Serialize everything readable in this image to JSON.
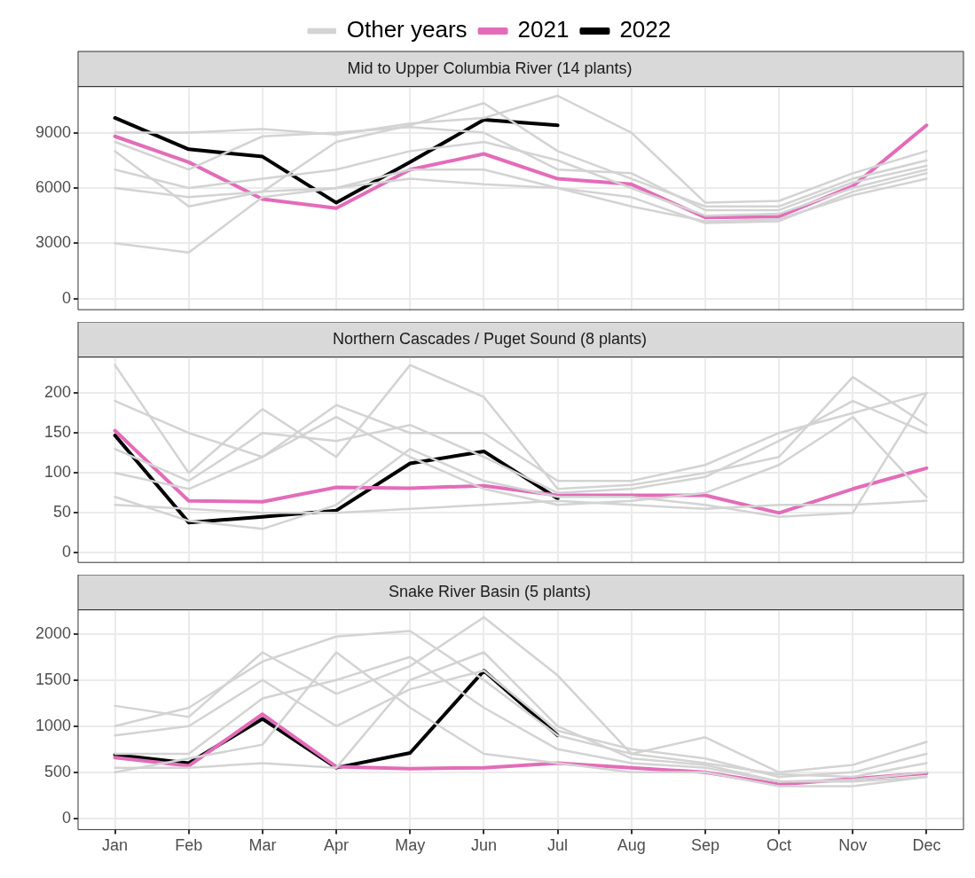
{
  "chart_data": [
    {
      "type": "line",
      "title": "Mid to Upper Columbia River (14 plants)",
      "legend": "top",
      "grid": true,
      "tick_labels": "y",
      "categories": [
        null,
        null,
        null,
        null,
        null,
        null,
        null,
        null,
        null,
        null,
        null,
        null
      ],
      "ylim": [
        -600,
        11500
      ],
      "yticks": [
        0,
        3000,
        6000,
        9000
      ],
      "series": [
        {
          "name": "Other years",
          "color": "#d3d3d3",
          "values": [
            3000,
            2500,
            5500,
            6000,
            6500,
            6200,
            6000,
            5000,
            4200,
            4300,
            5600,
            6500
          ]
        },
        {
          "color": "#d3d3d3",
          "values": [
            9000,
            9000,
            9200,
            8900,
            9500,
            9800,
            11000,
            9000,
            5200,
            5300,
            6800,
            8000
          ]
        },
        {
          "color": "#d3d3d3",
          "values": [
            7000,
            6000,
            6500,
            7000,
            8000,
            8500,
            7500,
            6000,
            4500,
            4600,
            6000,
            7000
          ]
        },
        {
          "color": "#d3d3d3",
          "values": [
            8000,
            5000,
            5800,
            8500,
            9400,
            10600,
            8000,
            6500,
            5000,
            5000,
            6500,
            7500
          ]
        },
        {
          "color": "#d3d3d3",
          "values": [
            6000,
            5500,
            5800,
            6000,
            7000,
            7000,
            6000,
            5500,
            4100,
            4200,
            5800,
            6800
          ]
        },
        {
          "color": "#d3d3d3",
          "values": [
            8500,
            7000,
            8800,
            9000,
            9300,
            9000,
            7000,
            6800,
            4800,
            4800,
            6300,
            7200
          ]
        },
        {
          "name": "2021",
          "color": "#e36cb9",
          "values": [
            8800,
            7400,
            5400,
            4900,
            7000,
            7850,
            6500,
            6200,
            4400,
            4450,
            6100,
            9400
          ]
        },
        {
          "name": "2022",
          "color": "#000000",
          "values": [
            9800,
            8100,
            7700,
            5200,
            7400,
            9700,
            9400,
            null,
            null,
            null,
            null,
            null
          ]
        }
      ]
    },
    {
      "type": "line",
      "title": "Northern Cascades / Puget Sound (8 plants)",
      "grid": true,
      "tick_labels": "y",
      "categories": [
        null,
        null,
        null,
        null,
        null,
        null,
        null,
        null,
        null,
        null,
        null,
        null
      ],
      "ylim": [
        -12,
        245
      ],
      "yticks": [
        0,
        50,
        100,
        150,
        200
      ],
      "series": [
        {
          "color": "#d3d3d3",
          "values": [
            235,
            100,
            180,
            120,
            235,
            195,
            80,
            85,
            100,
            120,
            220,
            160
          ]
        },
        {
          "color": "#d3d3d3",
          "values": [
            190,
            150,
            120,
            185,
            150,
            150,
            90,
            90,
            110,
            150,
            175,
            200
          ]
        },
        {
          "color": "#d3d3d3",
          "values": [
            70,
            40,
            30,
            60,
            130,
            90,
            70,
            70,
            60,
            45,
            50,
            200
          ]
        },
        {
          "color": "#d3d3d3",
          "values": [
            130,
            90,
            150,
            140,
            160,
            120,
            75,
            80,
            95,
            140,
            190,
            150
          ]
        },
        {
          "color": "#d3d3d3",
          "values": [
            60,
            55,
            50,
            50,
            55,
            60,
            65,
            60,
            55,
            60,
            60,
            65
          ]
        },
        {
          "color": "#d3d3d3",
          "values": [
            100,
            80,
            120,
            170,
            120,
            80,
            60,
            65,
            75,
            110,
            170,
            70
          ]
        },
        {
          "color": "#e36cb9",
          "values": [
            153,
            65,
            64,
            82,
            81,
            84,
            72,
            72,
            72,
            50,
            80,
            106
          ]
        },
        {
          "color": "#000000",
          "values": [
            147,
            38,
            45,
            53,
            112,
            127,
            68,
            null,
            null,
            null,
            null,
            null
          ]
        }
      ]
    },
    {
      "type": "line",
      "title": "Snake River Basin (5 plants)",
      "grid": true,
      "categories": [
        "Jan",
        "Feb",
        "Mar",
        "Apr",
        "May",
        "Jun",
        "Jul",
        "Aug",
        "Sep",
        "Oct",
        "Nov",
        "Dec"
      ],
      "ylim": [
        -120,
        2260
      ],
      "yticks": [
        0,
        500,
        1000,
        1500,
        2000
      ],
      "series": [
        {
          "color": "#d3d3d3",
          "values": [
            1220,
            1100,
            1800,
            1350,
            1650,
            2180,
            1550,
            700,
            880,
            500,
            580,
            830
          ]
        },
        {
          "color": "#d3d3d3",
          "values": [
            1000,
            1200,
            1700,
            1970,
            2030,
            1500,
            900,
            700,
            600,
            480,
            450,
            600
          ]
        },
        {
          "color": "#d3d3d3",
          "values": [
            550,
            550,
            600,
            550,
            1500,
            1800,
            1000,
            650,
            580,
            400,
            400,
            450
          ]
        },
        {
          "color": "#d3d3d3",
          "values": [
            700,
            700,
            1300,
            1500,
            1750,
            1200,
            750,
            600,
            550,
            400,
            420,
            500
          ]
        },
        {
          "color": "#d3d3d3",
          "values": [
            500,
            650,
            800,
            1800,
            1200,
            700,
            600,
            500,
            500,
            350,
            350,
            450
          ]
        },
        {
          "color": "#d3d3d3",
          "values": [
            900,
            1000,
            1500,
            1000,
            1400,
            1600,
            950,
            750,
            650,
            450,
            500,
            700
          ]
        },
        {
          "color": "#e36cb9",
          "values": [
            660,
            570,
            1130,
            560,
            540,
            550,
            600,
            550,
            500,
            370,
            430,
            490
          ]
        },
        {
          "color": "#000000",
          "values": [
            690,
            600,
            1080,
            550,
            710,
            1600,
            900,
            null,
            null,
            null,
            null,
            null
          ]
        }
      ]
    }
  ]
}
